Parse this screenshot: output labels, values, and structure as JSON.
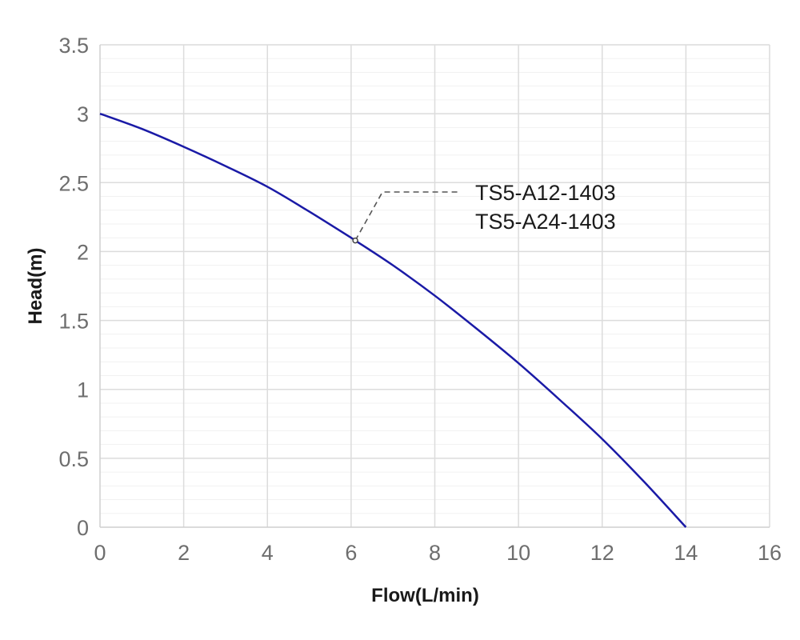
{
  "chart_data": {
    "type": "line",
    "title": "",
    "xlabel": "Flow(L/min)",
    "ylabel": "Head(m)",
    "xlim": [
      0,
      16
    ],
    "ylim": [
      0,
      3.5
    ],
    "x_ticks": [
      "0",
      "2",
      "4",
      "6",
      "8",
      "10",
      "12",
      "14",
      "16"
    ],
    "y_ticks": [
      "0",
      "0.5",
      "1",
      "1.5",
      "2",
      "2.5",
      "3",
      "3.5"
    ],
    "grid": true,
    "series": [
      {
        "x": [
          0,
          1,
          2,
          3,
          4,
          5,
          6,
          6.1,
          7,
          8,
          9,
          10,
          11,
          12,
          13,
          14
        ],
        "y": [
          3.0,
          2.89,
          2.76,
          2.62,
          2.47,
          2.29,
          2.1,
          2.08,
          1.9,
          1.68,
          1.44,
          1.19,
          0.92,
          0.64,
          0.33,
          0.0
        ],
        "color": "#1a1aa6"
      }
    ],
    "annotation": {
      "point": {
        "x": 6.1,
        "y": 2.08
      },
      "labels": [
        "TS5-A12-1403",
        "TS5-A24-1403"
      ]
    }
  }
}
